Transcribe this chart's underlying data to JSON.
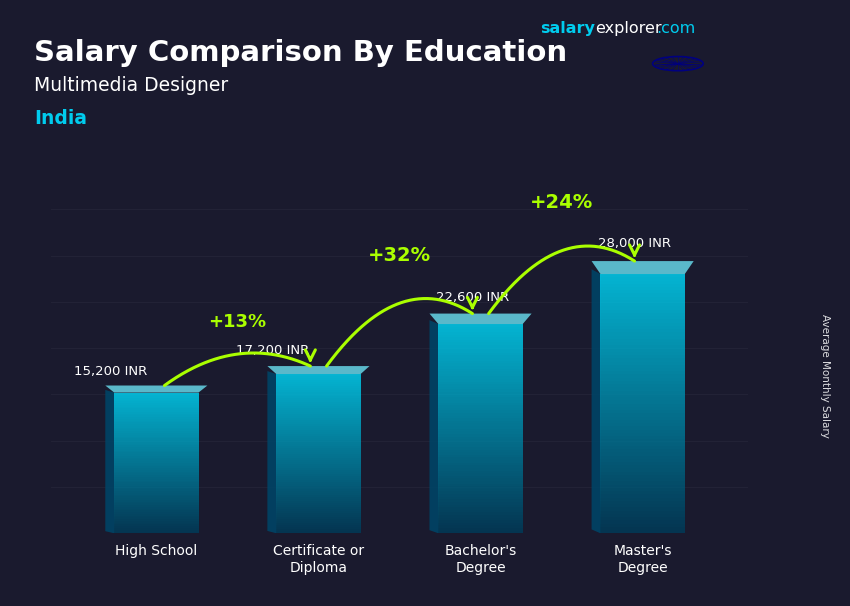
{
  "title": "Salary Comparison By Education",
  "subtitle": "Multimedia Designer",
  "country": "India",
  "categories": [
    "High School",
    "Certificate or\nDiploma",
    "Bachelor's\nDegree",
    "Master's\nDegree"
  ],
  "values": [
    15200,
    17200,
    22600,
    28000
  ],
  "value_labels": [
    "15,200 INR",
    "17,200 INR",
    "22,600 INR",
    "28,000 INR"
  ],
  "pct_changes": [
    "+13%",
    "+32%",
    "+24%"
  ],
  "bar_color": "#00c8e8",
  "bar_alpha": 0.82,
  "bg_color": "#1a1a2e",
  "title_color": "#ffffff",
  "subtitle_color": "#ffffff",
  "country_color": "#00ccee",
  "value_label_color": "#ffffff",
  "pct_color": "#aaff00",
  "ylabel": "Average Monthly Salary",
  "ylim_max": 36000,
  "bar_width": 0.52,
  "brand_salary_color": "#00ccee",
  "brand_explorer_color": "#ffffff",
  "brand_dotcom_color": "#00ccee",
  "flag_colors": [
    "#FF9933",
    "#FFFFFF",
    "#138808"
  ],
  "flag_chakra_color": "#000080"
}
